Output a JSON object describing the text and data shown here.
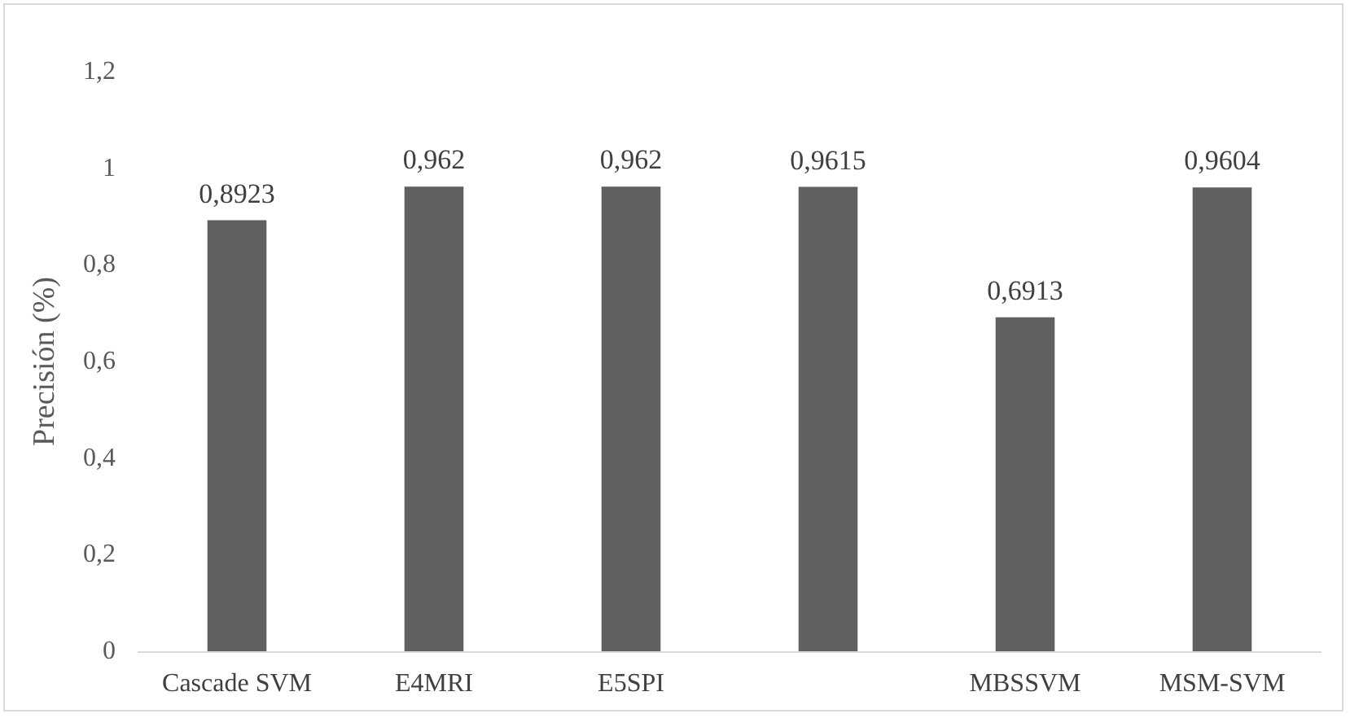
{
  "chart_data": {
    "type": "bar",
    "ylabel": "Precisión (%)",
    "categories": [
      "Cascade SVM",
      "E4MRI",
      "E5SPI",
      null,
      "MBSSVM",
      "MSM-SVM"
    ],
    "values": [
      0.8923,
      0.962,
      0.962,
      0.9615,
      0.6913,
      0.9604
    ],
    "value_labels": [
      "0,8923",
      "0,962",
      "0,962",
      "0,9615",
      "0,6913",
      "0,9604"
    ],
    "color": "#606060",
    "ylim": [
      0,
      1.2
    ],
    "yticks": [
      0,
      {
        "value": 0.2,
        "label": "0,2"
      },
      {
        "value": 0.4,
        "label": "0,4"
      },
      {
        "value": 0.6,
        "label": "0,6"
      },
      {
        "value": 0.8,
        "label": "0,8"
      },
      1,
      {
        "value": 1.2,
        "label": "1,2"
      }
    ],
    "grid": false
  }
}
